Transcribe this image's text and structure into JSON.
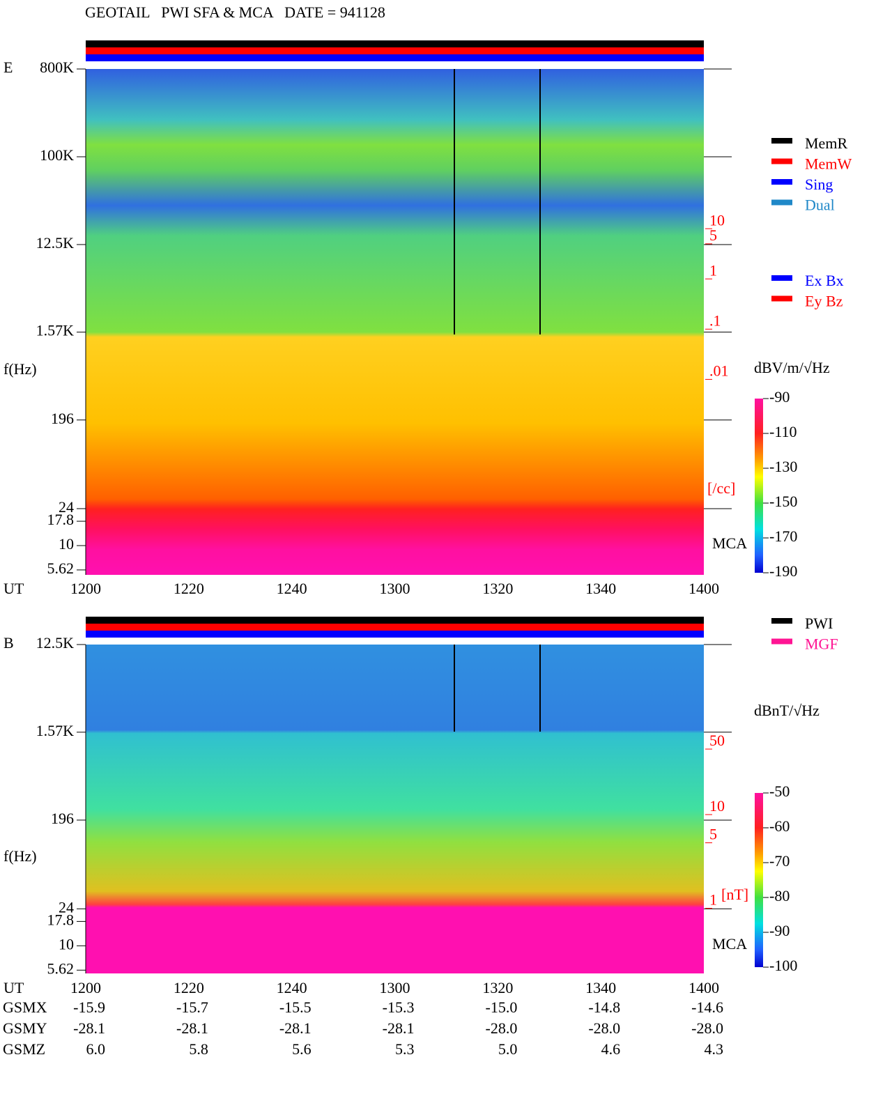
{
  "title": "GEOTAIL   PWI SFA & MCA   DATE = 941128",
  "chart_data": [
    {
      "type": "spectrogram",
      "panel_label": "E",
      "ylabel": "f(Hz)",
      "xlabel": "UT",
      "ylog": true,
      "ylim": [
        5,
        800000
      ],
      "yticks": [
        {
          "value": 800000,
          "label": "800K"
        },
        {
          "value": 100000,
          "label": "100K"
        },
        {
          "value": 12500,
          "label": "12.5K"
        },
        {
          "value": 1570,
          "label": "1.57K"
        },
        196,
        24,
        17.8,
        10,
        5.62
      ],
      "categories": [
        "1200",
        "1220",
        "1240",
        "1300",
        "1320",
        "1340",
        "1400"
      ],
      "y2log": true,
      "y2lim": [
        11000,
        9.3e-07
      ],
      "y2ticks": [
        10,
        5,
        1,
        {
          "value": 0.1,
          "label": ".1"
        },
        {
          "value": 0.01,
          "label": ".01"
        }
      ],
      "y2label": "[/cc]",
      "band_label": "MCA",
      "colorbar": {
        "label": "dBV/m/√Hz",
        "clim": [
          -90,
          -190
        ],
        "ticks": [
          -90,
          -110,
          -130,
          -150,
          -170,
          -190
        ]
      },
      "legends": [
        [
          {
            "name": "MemR",
            "color": "#000000"
          },
          {
            "name": "MemW",
            "color": "#ff0000"
          },
          {
            "name": "Sing",
            "color": "#0000ff"
          },
          {
            "name": "Dual",
            "color": "#2088c8"
          }
        ],
        [
          {
            "name": "Ex Bx",
            "color": "#0000ff"
          },
          {
            "name": "Ey Bz",
            "color": "#ff0000"
          }
        ]
      ]
    },
    {
      "type": "spectrogram",
      "panel_label": "B",
      "ylabel": "f(Hz)",
      "xlabel": "UT",
      "ylog": true,
      "ylim": [
        5.2,
        12500
      ],
      "yticks": [
        {
          "value": 12500,
          "label": "12.5K"
        },
        {
          "value": 1570,
          "label": "1.57K"
        },
        196,
        24,
        17.8,
        10,
        5.62
      ],
      "categories": [
        "1200",
        "1220",
        "1240",
        "1300",
        "1320",
        "1340",
        "1400"
      ],
      "y2log": true,
      "y2lim": [
        550,
        0.17
      ],
      "y2ticks": [
        50,
        10,
        5,
        1
      ],
      "y2label": "[nT]",
      "band_label": "MCA",
      "colorbar": {
        "label": "dBnT/√Hz",
        "clim": [
          -50,
          -100
        ],
        "ticks": [
          -50,
          -60,
          -70,
          -80,
          -90,
          -100
        ]
      },
      "legends": [
        [
          {
            "name": "PWI",
            "color": "#000000"
          },
          {
            "name": "MGF",
            "color": "#ff1493"
          }
        ]
      ]
    }
  ],
  "orbit": {
    "labels": [
      "GSMX",
      "GSMY",
      "GSMZ"
    ],
    "rows": [
      [
        "-15.9",
        "-15.7",
        "-15.5",
        "-15.3",
        "-15.0",
        "-14.8",
        "-14.6"
      ],
      [
        "-28.1",
        "-28.1",
        "-28.1",
        "-28.1",
        "-28.0",
        "-28.0",
        "-28.0"
      ],
      [
        "6.0",
        "5.8",
        "5.6",
        "5.3",
        "5.0",
        "4.6",
        "4.3"
      ]
    ]
  }
}
